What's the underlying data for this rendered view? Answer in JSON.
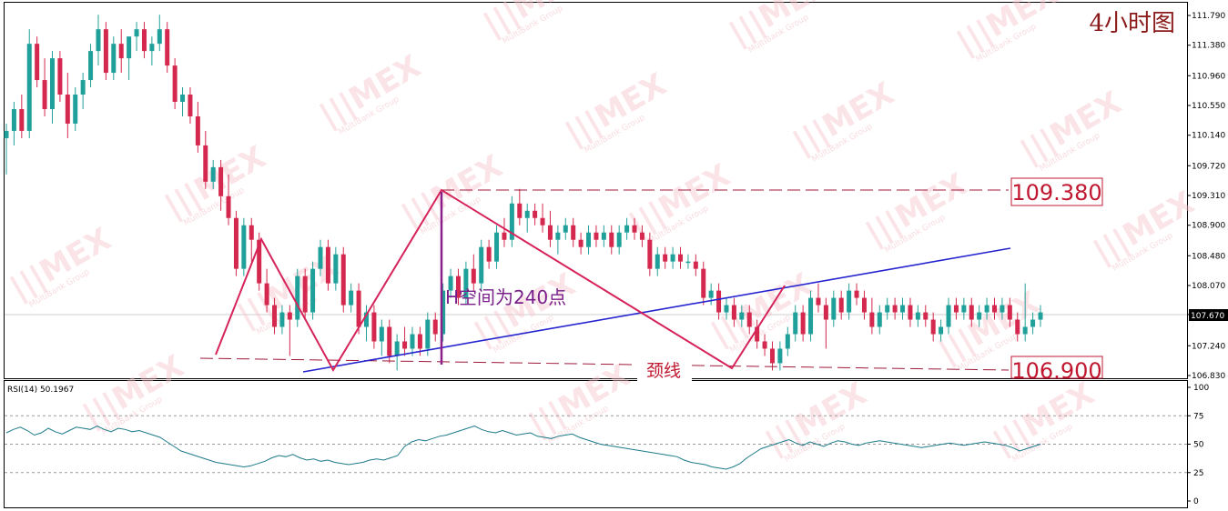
{
  "panel_title": "4小时图",
  "price_axis_ticks": [
    "111.790",
    "111.380",
    "110.960",
    "110.550",
    "110.140",
    "109.720",
    "109.310",
    "108.900",
    "108.480",
    "108.070",
    "107.670",
    "107.240",
    "106.830"
  ],
  "current_price_label": "107.670",
  "callouts": {
    "resistance": "109.380",
    "neckline_level": "106.900",
    "measure_text": "H空间为240点",
    "neckline_text": "颈线"
  },
  "rsi": {
    "label": "RSI(14) 50.1967",
    "ticks": [
      "100",
      "75",
      "50",
      "25",
      "0"
    ]
  },
  "watermark": {
    "text": "MEX",
    "sub": "MultiBank Group"
  },
  "colors": {
    "bull": "#20a09a",
    "bear": "#d4284e",
    "pattern_line": "#d6235a",
    "trend_line": "#2525d0",
    "measure_line": "#8a1f8a",
    "measure_text": "#7a1f8a",
    "level_box": "#c01830",
    "rsi_line": "#1d7a8a",
    "title": "#8b1a1a"
  },
  "chart_data": {
    "type": "candlestick",
    "title": "4小时图",
    "ylim": [
      106.8,
      111.9
    ],
    "candles": [
      {
        "o": 110.1,
        "h": 110.3,
        "l": 109.6,
        "c": 110.2
      },
      {
        "o": 110.2,
        "h": 110.6,
        "l": 110.0,
        "c": 110.5
      },
      {
        "o": 110.5,
        "h": 110.7,
        "l": 110.1,
        "c": 110.2
      },
      {
        "o": 110.2,
        "h": 111.6,
        "l": 110.1,
        "c": 111.4
      },
      {
        "o": 111.4,
        "h": 111.5,
        "l": 110.8,
        "c": 110.9
      },
      {
        "o": 110.9,
        "h": 111.2,
        "l": 110.4,
        "c": 110.5
      },
      {
        "o": 110.5,
        "h": 111.3,
        "l": 110.3,
        "c": 111.2
      },
      {
        "o": 111.2,
        "h": 111.3,
        "l": 110.6,
        "c": 110.7
      },
      {
        "o": 110.7,
        "h": 111.0,
        "l": 110.1,
        "c": 110.3
      },
      {
        "o": 110.3,
        "h": 110.8,
        "l": 110.2,
        "c": 110.7
      },
      {
        "o": 110.7,
        "h": 111.0,
        "l": 110.5,
        "c": 110.9
      },
      {
        "o": 110.9,
        "h": 111.4,
        "l": 110.8,
        "c": 111.3
      },
      {
        "o": 111.3,
        "h": 111.8,
        "l": 111.1,
        "c": 111.6
      },
      {
        "o": 111.6,
        "h": 111.7,
        "l": 110.9,
        "c": 111.0
      },
      {
        "o": 111.0,
        "h": 111.5,
        "l": 110.9,
        "c": 111.4
      },
      {
        "o": 111.4,
        "h": 111.6,
        "l": 111.0,
        "c": 111.2
      },
      {
        "o": 111.2,
        "h": 111.5,
        "l": 110.9,
        "c": 111.5
      },
      {
        "o": 111.5,
        "h": 111.7,
        "l": 111.3,
        "c": 111.6
      },
      {
        "o": 111.6,
        "h": 111.7,
        "l": 111.2,
        "c": 111.3
      },
      {
        "o": 111.3,
        "h": 111.5,
        "l": 111.1,
        "c": 111.4
      },
      {
        "o": 111.4,
        "h": 111.8,
        "l": 111.3,
        "c": 111.6
      },
      {
        "o": 111.6,
        "h": 111.7,
        "l": 111.0,
        "c": 111.1
      },
      {
        "o": 111.1,
        "h": 111.2,
        "l": 110.5,
        "c": 110.6
      },
      {
        "o": 110.6,
        "h": 110.8,
        "l": 110.4,
        "c": 110.7
      },
      {
        "o": 110.7,
        "h": 110.8,
        "l": 110.3,
        "c": 110.4
      },
      {
        "o": 110.4,
        "h": 110.6,
        "l": 109.9,
        "c": 110.0
      },
      {
        "o": 110.0,
        "h": 110.2,
        "l": 109.4,
        "c": 109.5
      },
      {
        "o": 109.5,
        "h": 109.8,
        "l": 109.4,
        "c": 109.7
      },
      {
        "o": 109.7,
        "h": 109.8,
        "l": 109.1,
        "c": 109.3
      },
      {
        "o": 109.3,
        "h": 109.6,
        "l": 108.9,
        "c": 109.0
      },
      {
        "o": 109.0,
        "h": 109.1,
        "l": 108.2,
        "c": 108.3
      },
      {
        "o": 108.3,
        "h": 109.0,
        "l": 108.2,
        "c": 108.9
      },
      {
        "o": 108.9,
        "h": 109.0,
        "l": 108.4,
        "c": 108.7
      },
      {
        "o": 108.7,
        "h": 108.8,
        "l": 108.0,
        "c": 108.1
      },
      {
        "o": 108.1,
        "h": 108.3,
        "l": 107.7,
        "c": 107.8
      },
      {
        "o": 107.8,
        "h": 107.9,
        "l": 107.4,
        "c": 107.5
      },
      {
        "o": 107.5,
        "h": 107.8,
        "l": 107.4,
        "c": 107.7
      },
      {
        "o": 107.7,
        "h": 107.8,
        "l": 107.1,
        "c": 107.6
      },
      {
        "o": 107.6,
        "h": 108.3,
        "l": 107.5,
        "c": 108.2
      },
      {
        "o": 108.2,
        "h": 108.3,
        "l": 107.6,
        "c": 107.7
      },
      {
        "o": 107.7,
        "h": 108.4,
        "l": 107.6,
        "c": 108.3
      },
      {
        "o": 108.3,
        "h": 108.7,
        "l": 108.2,
        "c": 108.6
      },
      {
        "o": 108.6,
        "h": 108.7,
        "l": 108.0,
        "c": 108.1
      },
      {
        "o": 108.1,
        "h": 108.6,
        "l": 108.0,
        "c": 108.5
      },
      {
        "o": 108.5,
        "h": 108.6,
        "l": 107.7,
        "c": 107.8
      },
      {
        "o": 107.8,
        "h": 108.1,
        "l": 107.7,
        "c": 108.0
      },
      {
        "o": 108.0,
        "h": 108.1,
        "l": 107.4,
        "c": 107.5
      },
      {
        "o": 107.5,
        "h": 107.8,
        "l": 107.3,
        "c": 107.7
      },
      {
        "o": 107.7,
        "h": 107.8,
        "l": 107.2,
        "c": 107.3
      },
      {
        "o": 107.3,
        "h": 107.6,
        "l": 107.1,
        "c": 107.5
      },
      {
        "o": 107.5,
        "h": 107.6,
        "l": 107.0,
        "c": 107.1
      },
      {
        "o": 107.1,
        "h": 107.4,
        "l": 106.9,
        "c": 107.3
      },
      {
        "o": 107.3,
        "h": 107.5,
        "l": 107.1,
        "c": 107.2
      },
      {
        "o": 107.2,
        "h": 107.5,
        "l": 107.1,
        "c": 107.4
      },
      {
        "o": 107.4,
        "h": 107.5,
        "l": 107.1,
        "c": 107.2
      },
      {
        "o": 107.2,
        "h": 107.7,
        "l": 107.1,
        "c": 107.6
      },
      {
        "o": 107.6,
        "h": 107.7,
        "l": 107.3,
        "c": 107.4
      },
      {
        "o": 107.4,
        "h": 108.1,
        "l": 107.3,
        "c": 108.0
      },
      {
        "o": 108.0,
        "h": 108.3,
        "l": 107.9,
        "c": 108.2
      },
      {
        "o": 108.2,
        "h": 108.3,
        "l": 107.8,
        "c": 107.9
      },
      {
        "o": 107.9,
        "h": 108.4,
        "l": 107.8,
        "c": 108.3
      },
      {
        "o": 108.3,
        "h": 108.5,
        "l": 108.0,
        "c": 108.1
      },
      {
        "o": 108.1,
        "h": 108.7,
        "l": 108.0,
        "c": 108.6
      },
      {
        "o": 108.6,
        "h": 108.7,
        "l": 108.3,
        "c": 108.4
      },
      {
        "o": 108.4,
        "h": 108.9,
        "l": 108.3,
        "c": 108.8
      },
      {
        "o": 108.8,
        "h": 109.0,
        "l": 108.6,
        "c": 108.7
      },
      {
        "o": 108.7,
        "h": 109.3,
        "l": 108.6,
        "c": 109.2
      },
      {
        "o": 109.2,
        "h": 109.4,
        "l": 108.9,
        "c": 109.0
      },
      {
        "o": 109.0,
        "h": 109.2,
        "l": 108.8,
        "c": 109.1
      },
      {
        "o": 109.1,
        "h": 109.2,
        "l": 108.9,
        "c": 109.0
      },
      {
        "o": 109.0,
        "h": 109.2,
        "l": 108.8,
        "c": 108.9
      },
      {
        "o": 108.9,
        "h": 109.1,
        "l": 108.6,
        "c": 108.7
      },
      {
        "o": 108.7,
        "h": 108.9,
        "l": 108.5,
        "c": 108.8
      },
      {
        "o": 108.8,
        "h": 109.0,
        "l": 108.7,
        "c": 108.9
      },
      {
        "o": 108.9,
        "h": 109.0,
        "l": 108.6,
        "c": 108.7
      },
      {
        "o": 108.7,
        "h": 108.8,
        "l": 108.5,
        "c": 108.6
      },
      {
        "o": 108.6,
        "h": 108.9,
        "l": 108.5,
        "c": 108.8
      },
      {
        "o": 108.8,
        "h": 108.9,
        "l": 108.6,
        "c": 108.7
      },
      {
        "o": 108.7,
        "h": 108.9,
        "l": 108.6,
        "c": 108.8
      },
      {
        "o": 108.8,
        "h": 108.9,
        "l": 108.5,
        "c": 108.6
      },
      {
        "o": 108.6,
        "h": 108.9,
        "l": 108.5,
        "c": 108.8
      },
      {
        "o": 108.8,
        "h": 109.0,
        "l": 108.7,
        "c": 108.9
      },
      {
        "o": 108.9,
        "h": 109.0,
        "l": 108.7,
        "c": 108.8
      },
      {
        "o": 108.8,
        "h": 108.9,
        "l": 108.6,
        "c": 108.7
      },
      {
        "o": 108.7,
        "h": 108.8,
        "l": 108.2,
        "c": 108.3
      },
      {
        "o": 108.3,
        "h": 108.6,
        "l": 108.2,
        "c": 108.5
      },
      {
        "o": 108.5,
        "h": 108.6,
        "l": 108.3,
        "c": 108.4
      },
      {
        "o": 108.4,
        "h": 108.6,
        "l": 108.3,
        "c": 108.5
      },
      {
        "o": 108.5,
        "h": 108.6,
        "l": 108.3,
        "c": 108.4
      },
      {
        "o": 108.4,
        "h": 108.5,
        "l": 108.3,
        "c": 108.4
      },
      {
        "o": 108.4,
        "h": 108.5,
        "l": 108.2,
        "c": 108.3
      },
      {
        "o": 108.3,
        "h": 108.4,
        "l": 107.8,
        "c": 107.9
      },
      {
        "o": 107.9,
        "h": 108.1,
        "l": 107.8,
        "c": 108.0
      },
      {
        "o": 108.0,
        "h": 108.1,
        "l": 107.6,
        "c": 107.7
      },
      {
        "o": 107.7,
        "h": 107.9,
        "l": 107.6,
        "c": 107.8
      },
      {
        "o": 107.8,
        "h": 107.9,
        "l": 107.5,
        "c": 107.6
      },
      {
        "o": 107.6,
        "h": 107.8,
        "l": 107.5,
        "c": 107.7
      },
      {
        "o": 107.7,
        "h": 107.8,
        "l": 107.4,
        "c": 107.5
      },
      {
        "o": 107.5,
        "h": 107.6,
        "l": 107.2,
        "c": 107.3
      },
      {
        "o": 107.3,
        "h": 107.4,
        "l": 107.1,
        "c": 107.2
      },
      {
        "o": 107.2,
        "h": 107.3,
        "l": 106.9,
        "c": 107.0
      },
      {
        "o": 107.0,
        "h": 107.3,
        "l": 106.9,
        "c": 107.2
      },
      {
        "o": 107.2,
        "h": 107.5,
        "l": 107.1,
        "c": 107.4
      },
      {
        "o": 107.4,
        "h": 107.8,
        "l": 107.3,
        "c": 107.7
      },
      {
        "o": 107.7,
        "h": 107.8,
        "l": 107.3,
        "c": 107.4
      },
      {
        "o": 107.4,
        "h": 108.0,
        "l": 107.3,
        "c": 107.9
      },
      {
        "o": 107.9,
        "h": 108.1,
        "l": 107.7,
        "c": 107.8
      },
      {
        "o": 107.8,
        "h": 107.9,
        "l": 107.2,
        "c": 107.6
      },
      {
        "o": 107.6,
        "h": 108.0,
        "l": 107.5,
        "c": 107.9
      },
      {
        "o": 107.9,
        "h": 108.0,
        "l": 107.6,
        "c": 107.7
      },
      {
        "o": 107.7,
        "h": 108.1,
        "l": 107.6,
        "c": 108.0
      },
      {
        "o": 108.0,
        "h": 108.1,
        "l": 107.8,
        "c": 107.9
      },
      {
        "o": 107.9,
        "h": 108.0,
        "l": 107.6,
        "c": 107.7
      },
      {
        "o": 107.7,
        "h": 107.9,
        "l": 107.4,
        "c": 107.5
      },
      {
        "o": 107.5,
        "h": 107.8,
        "l": 107.4,
        "c": 107.7
      },
      {
        "o": 107.7,
        "h": 107.9,
        "l": 107.6,
        "c": 107.8
      },
      {
        "o": 107.8,
        "h": 107.9,
        "l": 107.6,
        "c": 107.7
      },
      {
        "o": 107.7,
        "h": 107.9,
        "l": 107.6,
        "c": 107.8
      },
      {
        "o": 107.8,
        "h": 107.9,
        "l": 107.5,
        "c": 107.6
      },
      {
        "o": 107.6,
        "h": 107.8,
        "l": 107.5,
        "c": 107.7
      },
      {
        "o": 107.7,
        "h": 107.8,
        "l": 107.5,
        "c": 107.6
      },
      {
        "o": 107.6,
        "h": 107.7,
        "l": 107.3,
        "c": 107.4
      },
      {
        "o": 107.4,
        "h": 107.6,
        "l": 107.3,
        "c": 107.5
      },
      {
        "o": 107.5,
        "h": 107.9,
        "l": 107.4,
        "c": 107.8
      },
      {
        "o": 107.8,
        "h": 107.9,
        "l": 107.6,
        "c": 107.7
      },
      {
        "o": 107.7,
        "h": 107.9,
        "l": 107.6,
        "c": 107.8
      },
      {
        "o": 107.8,
        "h": 107.9,
        "l": 107.5,
        "c": 107.6
      },
      {
        "o": 107.6,
        "h": 107.8,
        "l": 107.5,
        "c": 107.7
      },
      {
        "o": 107.7,
        "h": 107.9,
        "l": 107.6,
        "c": 107.8
      },
      {
        "o": 107.8,
        "h": 107.9,
        "l": 107.6,
        "c": 107.7
      },
      {
        "o": 107.7,
        "h": 107.9,
        "l": 107.6,
        "c": 107.8
      },
      {
        "o": 107.8,
        "h": 107.9,
        "l": 107.5,
        "c": 107.6
      },
      {
        "o": 107.6,
        "h": 107.7,
        "l": 107.3,
        "c": 107.4
      },
      {
        "o": 107.4,
        "h": 108.1,
        "l": 107.3,
        "c": 107.5
      },
      {
        "o": 107.5,
        "h": 107.7,
        "l": 107.4,
        "c": 107.6
      },
      {
        "o": 107.6,
        "h": 107.8,
        "l": 107.5,
        "c": 107.7
      }
    ],
    "levels": [
      {
        "label": "109.380",
        "value": 109.38
      },
      {
        "label": "106.900",
        "value": 106.9
      }
    ],
    "annotations": [
      "H空间为240点",
      "颈线"
    ],
    "rsi": {
      "name": "RSI(14)",
      "last": 50.1967,
      "ylim": [
        0,
        100
      ],
      "levels": [
        75,
        50,
        25
      ],
      "values": [
        60,
        63,
        65,
        62,
        58,
        60,
        64,
        61,
        59,
        62,
        65,
        64,
        63,
        66,
        63,
        61,
        64,
        63,
        61,
        62,
        60,
        58,
        56,
        52,
        48,
        44,
        42,
        40,
        38,
        36,
        34,
        33,
        32,
        31,
        30,
        31,
        33,
        35,
        38,
        40,
        39,
        41,
        38,
        36,
        37,
        35,
        36,
        34,
        33,
        32,
        33,
        34,
        36,
        37,
        36,
        38,
        40,
        48,
        52,
        54,
        53,
        55,
        57,
        58,
        60,
        62,
        64,
        66,
        63,
        61,
        60,
        62,
        60,
        58,
        59,
        60,
        57,
        56,
        55,
        57,
        58,
        59,
        56,
        54,
        52,
        50,
        49,
        48,
        47,
        46,
        45,
        44,
        43,
        42,
        41,
        40,
        39,
        36,
        34,
        33,
        32,
        30,
        29,
        28,
        30,
        33,
        38,
        42,
        46,
        48,
        50,
        52,
        54,
        51,
        49,
        52,
        50,
        48,
        51,
        53,
        52,
        50,
        49,
        51,
        52,
        53,
        52,
        51,
        50,
        49,
        48,
        47,
        48,
        49,
        50,
        51,
        50,
        49,
        50,
        51,
        52,
        51,
        50,
        49,
        47,
        44,
        46,
        48,
        50
      ]
    }
  }
}
